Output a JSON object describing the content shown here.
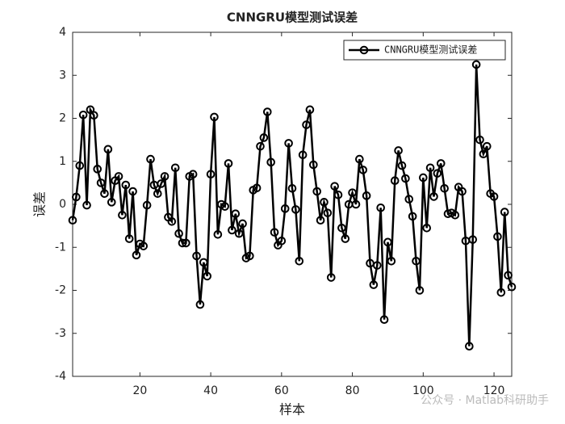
{
  "chart_data": {
    "type": "line",
    "title": "CNNGRU模型测试误差",
    "xlabel": "样本",
    "ylabel": "误差",
    "x": [
      1,
      2,
      3,
      4,
      5,
      6,
      7,
      8,
      9,
      10,
      11,
      12,
      13,
      14,
      15,
      16,
      17,
      18,
      19,
      20,
      21,
      22,
      23,
      24,
      25,
      26,
      27,
      28,
      29,
      30,
      31,
      32,
      33,
      34,
      35,
      36,
      37,
      38,
      39,
      40,
      41,
      42,
      43,
      44,
      45,
      46,
      47,
      48,
      49,
      50,
      51,
      52,
      53,
      54,
      55,
      56,
      57,
      58,
      59,
      60,
      61,
      62,
      63,
      64,
      65,
      66,
      67,
      68,
      69,
      70,
      71,
      72,
      73,
      74,
      75,
      76,
      77,
      78,
      79,
      80,
      81,
      82,
      83,
      84,
      85,
      86,
      87,
      88,
      89,
      90,
      91,
      92,
      93,
      94,
      95,
      96,
      97,
      98,
      99,
      100,
      101,
      102,
      103,
      104,
      105,
      106,
      107,
      108,
      109,
      110,
      111,
      112,
      113,
      114,
      115,
      116,
      117,
      118,
      119,
      120,
      121,
      122,
      123,
      124,
      125
    ],
    "series": [
      {
        "name": "CNNGRU模型测试误差",
        "color": "#000000",
        "values": [
          -0.37,
          0.17,
          0.9,
          2.08,
          -0.02,
          2.2,
          2.07,
          0.82,
          0.5,
          0.25,
          1.28,
          0.05,
          0.55,
          0.65,
          -0.25,
          0.45,
          -0.8,
          0.3,
          -1.18,
          -0.92,
          -0.97,
          -0.02,
          1.05,
          0.45,
          0.25,
          0.48,
          0.65,
          -0.3,
          -0.4,
          0.85,
          -0.68,
          -0.9,
          -0.9,
          0.65,
          0.7,
          -1.2,
          -2.33,
          -1.35,
          -1.67,
          0.7,
          2.03,
          -0.7,
          0.0,
          -0.05,
          0.95,
          -0.6,
          -0.22,
          -0.68,
          -0.45,
          -1.25,
          -1.2,
          0.33,
          0.38,
          1.35,
          1.55,
          2.15,
          0.98,
          -0.65,
          -0.95,
          -0.85,
          -0.1,
          1.42,
          0.37,
          -0.12,
          -1.32,
          1.15,
          1.85,
          2.2,
          0.92,
          0.3,
          -0.37,
          0.05,
          -0.2,
          -1.7,
          0.42,
          0.22,
          -0.55,
          -0.8,
          0.0,
          0.27,
          0.0,
          1.05,
          0.8,
          0.2,
          -1.37,
          -1.87,
          -1.42,
          -0.08,
          -2.68,
          -0.88,
          -1.32,
          0.55,
          1.25,
          0.9,
          0.6,
          0.12,
          -0.28,
          -1.32,
          -2.0,
          0.62,
          -0.55,
          0.85,
          0.18,
          0.72,
          0.95,
          0.37,
          -0.22,
          -0.2,
          -0.25,
          0.4,
          0.3,
          -0.85,
          -3.3,
          -0.82,
          3.25,
          1.5,
          1.17,
          1.35,
          0.25,
          0.18,
          -0.75,
          -2.05,
          -0.18,
          -1.65,
          -1.92
        ]
      }
    ],
    "xlim": [
      1,
      125
    ],
    "ylim": [
      -4,
      4
    ],
    "xticks": [
      20,
      40,
      60,
      80,
      100,
      120
    ],
    "yticks": [
      -4,
      -3,
      -2,
      -1,
      0,
      1,
      2,
      3,
      4
    ],
    "legend": "upper right",
    "watermark": "公众号 · Matlab科研助手"
  }
}
